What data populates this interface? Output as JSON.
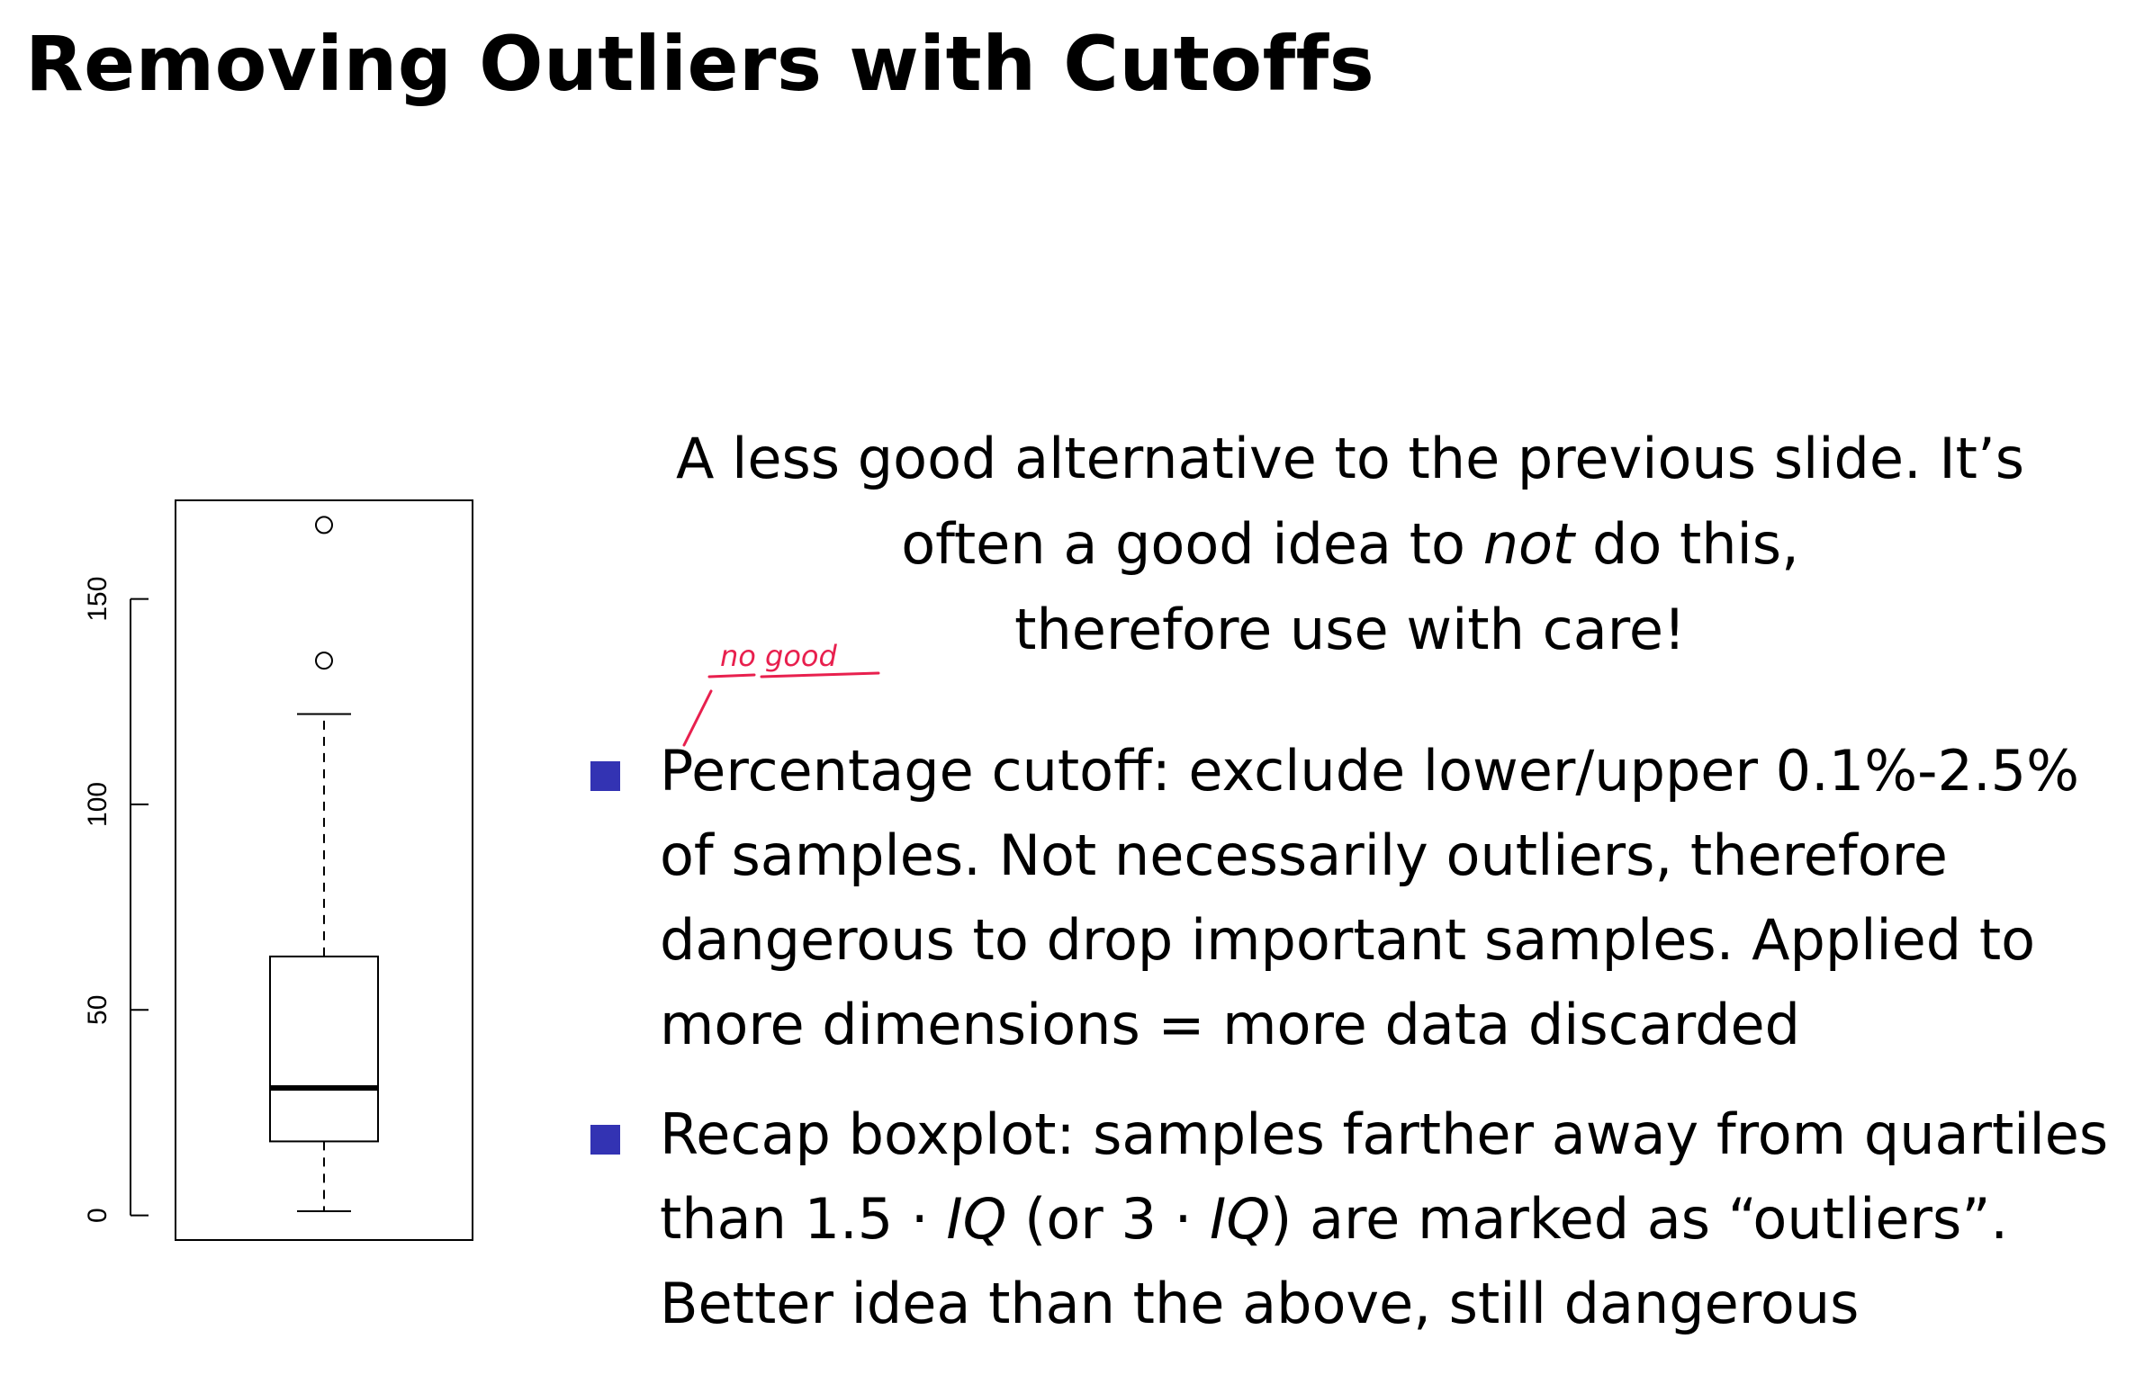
{
  "slide": {
    "title": "Removing Outliers with Cutoffs"
  },
  "intro": {
    "line1": "A less good alternative to the previous slide. It’s",
    "line2_pre": "often a good idea to ",
    "line2_emph": "not",
    "line2_post": " do this,",
    "line3": "therefore use with care!"
  },
  "annotation": {
    "text": "no good",
    "color": "#e8204e"
  },
  "bullets": [
    {
      "text": "Percentage cutoff: exclude lower/upper 0.1%-2.5% of samples. Not necessarily outliers, therefore dangerous to drop important samples. Applied to more dimensions = more data discarded"
    },
    {
      "seg1": "Recap boxplot: samples farther away from quartiles than 1.5 · ",
      "seg2": "IQ",
      "seg3": " (or 3 · ",
      "seg4": "IQ",
      "seg5": ") are marked as “outliers”. Better idea than the above, still dangerous"
    }
  ],
  "accent_color": "#3333b3",
  "chart_data": {
    "type": "boxplot",
    "title": "",
    "xlabel": "",
    "ylabel": "",
    "ylim": [
      -6,
      174
    ],
    "yticks": [
      0,
      50,
      100,
      150
    ],
    "ytick_labels": [
      "0",
      "50",
      "100",
      "150"
    ],
    "box": {
      "whisker_low": 1,
      "q1": 18,
      "median": 31,
      "q3": 63,
      "whisker_high": 122
    },
    "outliers": [
      135,
      168
    ]
  }
}
